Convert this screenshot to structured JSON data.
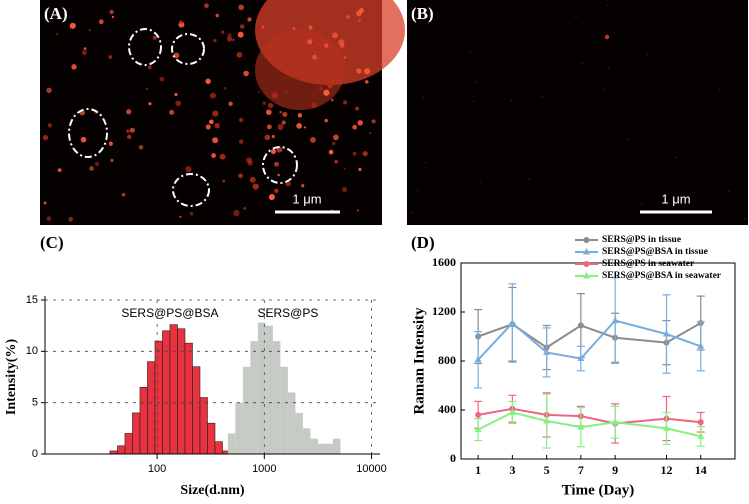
{
  "images": [
    {
      "panel_label": "(A)",
      "scale_bar": "1 μm"
    },
    {
      "panel_label": "(B)",
      "scale_bar": "1 μm"
    }
  ],
  "chart_data": [
    {
      "type": "histogram",
      "panel_label": "(C)",
      "xlabel": "Size(d.nm)",
      "ylabel": "Intensity(%)",
      "xscale": "log",
      "xlim": [
        9,
        12000
      ],
      "xticks": [
        100,
        1000,
        10000
      ],
      "ylim": [
        0,
        15
      ],
      "yticks": [
        0,
        5,
        10,
        15
      ],
      "grid": true,
      "series": [
        {
          "name": "SERS@PS@BSA",
          "color": "#e8323f",
          "bins": [
            36.3,
            42.7,
            50.1,
            58.9,
            69.2,
            81.3,
            95.5,
            112.2,
            131.8,
            154.9,
            182.0,
            213.8,
            251.2,
            295.1,
            346.7,
            407.4,
            478.6
          ],
          "values": [
            0.3,
            0.8,
            2.0,
            4.0,
            6.5,
            9.0,
            11.0,
            12.0,
            12.6,
            12.2,
            10.8,
            8.5,
            5.5,
            3.0,
            1.2,
            0.3
          ]
        },
        {
          "name": "SERS@PS",
          "color": "#c5cac5",
          "bins": [
            457.1,
            537.0,
            631.0,
            741.3,
            871.0,
            1023.3,
            1202.3,
            1412.5,
            1659.6,
            1949.8,
            2290.9,
            2691.5,
            3162.3,
            3715.4,
            4365.2,
            5128.6
          ],
          "values": [
            2.0,
            5.0,
            8.5,
            11.0,
            12.8,
            12.5,
            11.0,
            8.5,
            6.0,
            4.0,
            2.5,
            1.5,
            1.0,
            1.0,
            1.5
          ]
        }
      ]
    },
    {
      "type": "line",
      "panel_label": "(D)",
      "xlabel": "Time (Day)",
      "ylabel": "Raman Intensity",
      "x": [
        1,
        3,
        5,
        7,
        9,
        12,
        14
      ],
      "xlim": [
        0,
        16
      ],
      "xticks": [
        1,
        3,
        5,
        7,
        9,
        12,
        14
      ],
      "ylim": [
        0,
        1600
      ],
      "yticks": [
        0,
        400,
        800,
        1200,
        1600
      ],
      "series": [
        {
          "name": "SERS@PS in tissue",
          "color": "#8c8c8c",
          "values": [
            1000,
            1100,
            910,
            1090,
            990,
            950,
            1110
          ],
          "errors": [
            220,
            300,
            180,
            260,
            200,
            180,
            220
          ]
        },
        {
          "name": "SERS@PS@BSA in tissue",
          "color": "#78acdf",
          "values": [
            810,
            1110,
            870,
            820,
            1130,
            1020,
            920
          ],
          "errors": [
            230,
            320,
            200,
            100,
            350,
            320,
            200
          ]
        },
        {
          "name": "SERS@PS in seawater",
          "color": "#f06482",
          "values": [
            360,
            410,
            360,
            350,
            290,
            330,
            300
          ],
          "errors": [
            110,
            110,
            180,
            80,
            160,
            180,
            80
          ]
        },
        {
          "name": "SERS@PS@BSA in seawater",
          "color": "#84f084",
          "values": [
            240,
            380,
            310,
            260,
            300,
            250,
            185
          ],
          "errors": [
            90,
            90,
            220,
            160,
            130,
            130,
            80
          ]
        }
      ]
    }
  ]
}
